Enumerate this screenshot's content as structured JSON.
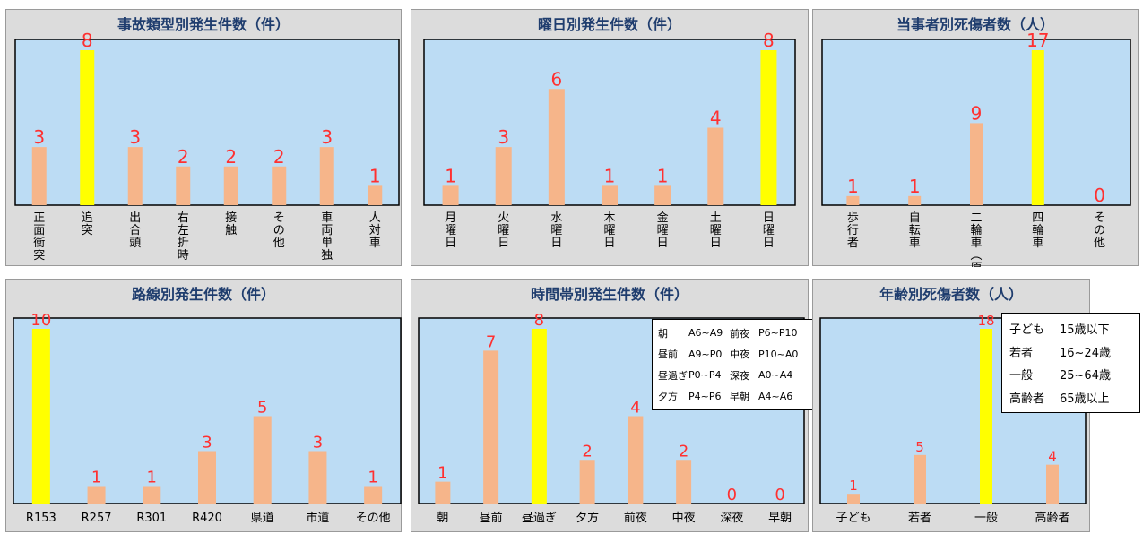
{
  "charts": [
    {
      "title": "事故類型別発生件数（件）",
      "type": "bar",
      "orientation": "vertical",
      "categories": [
        "正面衝突",
        "追突",
        "出合頭",
        "右左折時",
        "接触",
        "その他",
        "車両単独",
        "人対車"
      ],
      "values": [
        3,
        8,
        3,
        2,
        2,
        2,
        3,
        1
      ],
      "highlight": [
        1
      ],
      "ylim": [
        0,
        8
      ]
    },
    {
      "title": "曜日別発生件数（件）",
      "type": "bar",
      "orientation": "vertical",
      "categories": [
        "月曜日",
        "火曜日",
        "水曜日",
        "木曜日",
        "金曜日",
        "土曜日",
        "日曜日"
      ],
      "values": [
        1,
        3,
        6,
        1,
        1,
        4,
        8
      ],
      "highlight": [
        6
      ],
      "ylim": [
        0,
        8
      ]
    },
    {
      "title": "当事者別死傷者数（人）",
      "type": "bar",
      "orientation": "vertical",
      "categories": [
        "歩行者",
        "自転車",
        "二輪車（原付含）",
        "四輪車",
        "その他"
      ],
      "values": [
        1,
        1,
        9,
        17,
        0
      ],
      "highlight": [
        3
      ],
      "ylim": [
        0,
        17
      ]
    },
    {
      "title": "路線別発生件数（件）",
      "type": "bar",
      "orientation": "horizontal-text",
      "categories": [
        "R153",
        "R257",
        "R301",
        "R420",
        "県道",
        "市道",
        "その他"
      ],
      "values": [
        10,
        1,
        1,
        3,
        5,
        3,
        1
      ],
      "highlight": [
        0
      ],
      "ylim": [
        0,
        10
      ]
    },
    {
      "title": "時間帯別発生件数（件）",
      "type": "bar",
      "orientation": "horizontal-text",
      "categories": [
        "朝",
        "昼前",
        "昼過ぎ",
        "夕方",
        "前夜",
        "中夜",
        "深夜",
        "早朝"
      ],
      "values": [
        1,
        7,
        8,
        2,
        4,
        2,
        0,
        0
      ],
      "highlight": [
        2
      ],
      "ylim": [
        0,
        8
      ],
      "legend": [
        [
          "朝",
          "A6~A9",
          "前夜",
          "P6~P10"
        ],
        [
          "昼前",
          "A9~P0",
          "中夜",
          "P10~A0"
        ],
        [
          "昼過ぎ",
          "P0~P4",
          "深夜",
          "A0~A4"
        ],
        [
          "夕方",
          "P4~P6",
          "早朝",
          "A4~A6"
        ]
      ]
    },
    {
      "title": "年齢別死傷者数（人）",
      "type": "bar",
      "orientation": "horizontal-text",
      "categories": [
        "子ども",
        "若者",
        "一般",
        "高齢者"
      ],
      "values": [
        1,
        5,
        18,
        4
      ],
      "highlight": [
        2
      ],
      "ylim": [
        0,
        18
      ],
      "legend": [
        [
          "子ども",
          "15歳以下"
        ],
        [
          "若者",
          "16~24歳"
        ],
        [
          "一般",
          "25~64歳"
        ],
        [
          "高齢者",
          "65歳以上"
        ]
      ]
    }
  ],
  "colors": {
    "bar": "#f6b58a",
    "highlight": "#ffff00",
    "plot_bg": "#bcdcf4",
    "panel_bg": "#dcdcdc",
    "value": "#ff3030",
    "title": "#1f3d6e"
  }
}
